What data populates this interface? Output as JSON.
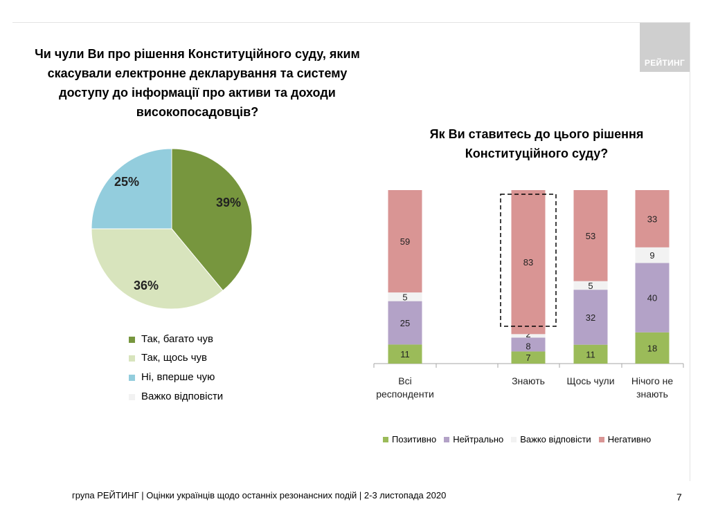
{
  "logo": "РЕЙТИНГ",
  "footer": "група РЕЙТИНГ | Оцінки українців щодо останніх резонансних подій | 2-3 листопада 2020",
  "page_number": "7",
  "colors": {
    "green": "#77963e",
    "lightgreen": "#d8e4bd",
    "blue": "#93cddd",
    "grey": "#f2f2f2",
    "posgreen": "#9bbb59",
    "purple": "#b3a2c7",
    "red": "#d99594"
  },
  "chart_data": [
    {
      "type": "pie",
      "title": "Чи чули Ви про рішення Конституційного суду, яким скасували електронне декларування та систему доступу до інформації про активи та доходи високопосадовців?",
      "title_lines": [
        "Чи чули Ви про рішення Конституційного суду, яким",
        "скасували електронне декларування та систему",
        "доступу до інформації про активи та доходи",
        "високопосадовців?"
      ],
      "labels": [
        "Так, багато чув",
        "Так, щось чув",
        "Ні, вперше чую",
        "Важко відповісти"
      ],
      "values": [
        39,
        36,
        25,
        0
      ],
      "value_labels": [
        "39%",
        "36%",
        "25%",
        ""
      ],
      "colors": [
        "#77963e",
        "#d8e4bd",
        "#93cddd",
        "#f2f2f2"
      ]
    },
    {
      "type": "bar",
      "stacked": true,
      "title": "Як Ви ставитесь до цього рішення Конституційного суду?",
      "title_lines": [
        "Як Ви ставитесь до цього рішення",
        "Конституційного суду?"
      ],
      "categories": [
        [
          "Всі",
          "респонденти"
        ],
        [
          ""
        ],
        [
          "Знають"
        ],
        [
          "Щось чули"
        ],
        [
          "Нічого не",
          "знають"
        ]
      ],
      "series": [
        {
          "name": "Позитивно",
          "color": "#9bbb59",
          "values": [
            11,
            null,
            7,
            11,
            18
          ]
        },
        {
          "name": "Нейтрально",
          "color": "#b3a2c7",
          "values": [
            25,
            null,
            8,
            32,
            40
          ]
        },
        {
          "name": "Важко відповісти",
          "color": "#f2f2f2",
          "values": [
            5,
            null,
            2,
            5,
            9
          ]
        },
        {
          "name": "Негативно",
          "color": "#d99594",
          "values": [
            59,
            null,
            83,
            53,
            33
          ]
        }
      ],
      "highlight": {
        "category_index": 2,
        "series": "Негативно",
        "style": "dashed box"
      },
      "ylim": [
        0,
        100
      ]
    }
  ]
}
